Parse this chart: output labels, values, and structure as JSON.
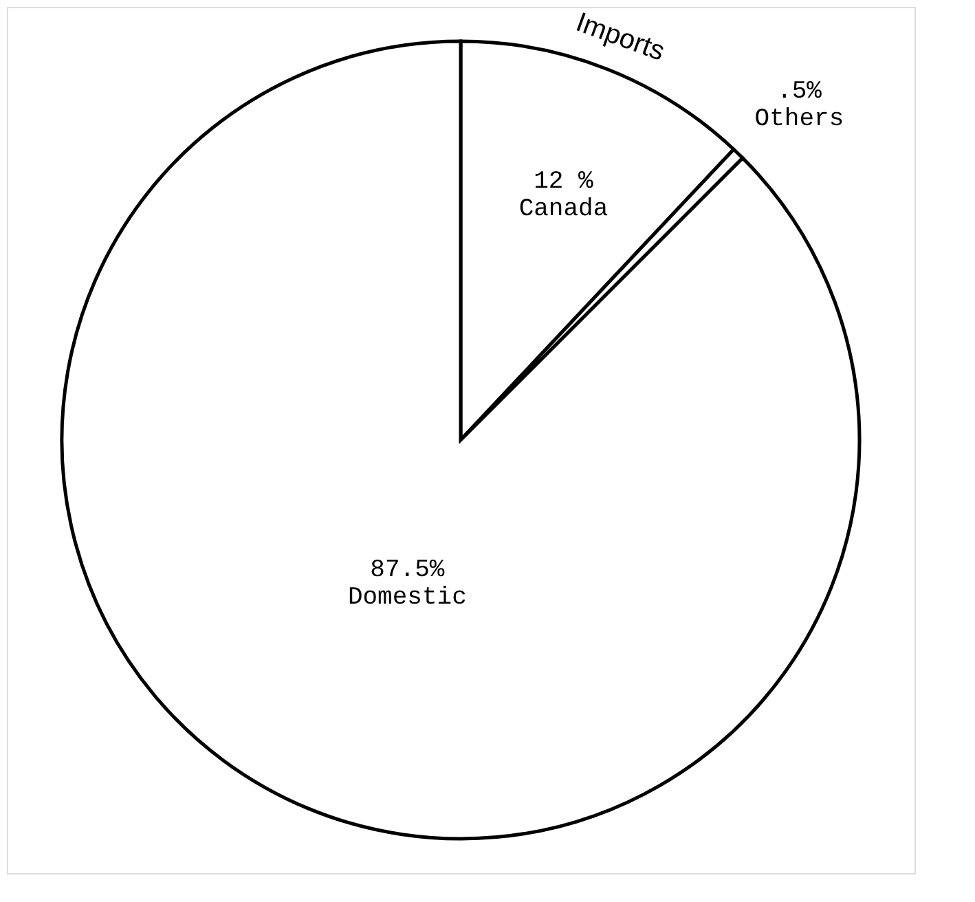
{
  "chart_data": {
    "type": "pie",
    "categories": [
      "Canada",
      "Others",
      "Domestic"
    ],
    "values": [
      12,
      0.5,
      87.5
    ],
    "value_labels": [
      "12 %",
      ".5%",
      "87.5%"
    ],
    "colors": [
      "#ffffff",
      "#ffffff",
      "#ffffff"
    ],
    "annotations": [
      "Imports"
    ],
    "legend": false
  }
}
